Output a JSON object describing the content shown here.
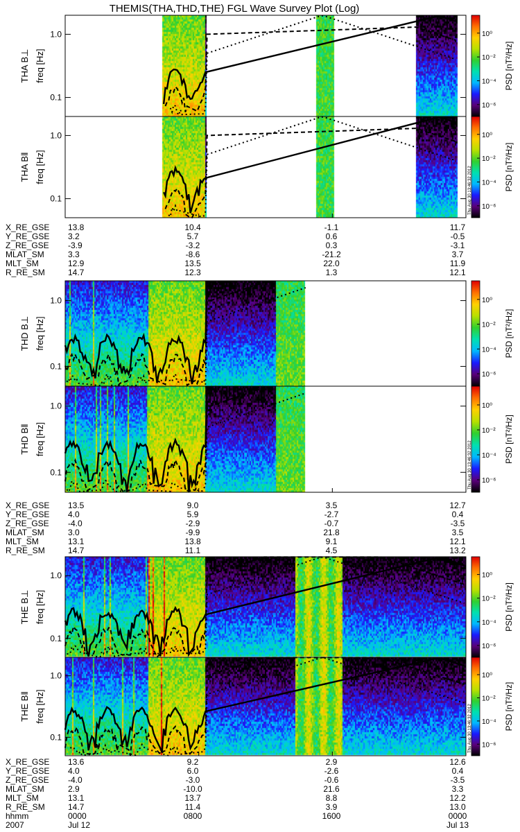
{
  "chart_data": {
    "type": "heatmap",
    "title": "THEMIS(THA,THD,THE) FGL Wave Survey Plot (Log)",
    "stamp": "Thu Aug 30 13:46:32 2012",
    "y_ticks": [
      "0.1",
      "1.0"
    ],
    "ylim_hz": [
      0.05,
      2.0
    ],
    "yscale": "log",
    "colorbar": {
      "label": "PSD [nT²/Hz]",
      "ticks": [
        "10⁰",
        "10⁻²",
        "10⁻⁴",
        "10⁻⁶"
      ],
      "range_log10": [
        -7,
        1.5
      ],
      "colormap": [
        "#000000",
        "#5a007a",
        "#1a1aff",
        "#00b8ff",
        "#00e0b0",
        "#30d030",
        "#b8e000",
        "#ffd000",
        "#ff7000",
        "#e00000"
      ]
    },
    "time": {
      "range_hours": [
        0,
        24
      ],
      "labels": [
        "0000",
        "0800",
        "1600",
        "0000"
      ],
      "label_hours": [
        0,
        8,
        16,
        24
      ],
      "date_labels": [
        "Jul 12",
        "",
        "",
        "Jul 13"
      ],
      "hhmm_row": "hhmm",
      "year": "2007"
    },
    "probes": [
      {
        "name": "THA",
        "panels": [
          {
            "ylabel": "THA B⊥",
            "sublabel": "freq [Hz]"
          },
          {
            "ylabel": "THA B‖",
            "sublabel": "freq [Hz]"
          }
        ],
        "data_intervals": [
          [
            5.8,
            8.5
          ],
          [
            15.0,
            16.1
          ],
          [
            21.0,
            23.5
          ]
        ],
        "ephemeris": [
          {
            "label": "X_RE_GSE",
            "values": [
              "13.8",
              "10.4",
              "-1.1",
              "11.7"
            ]
          },
          {
            "label": "Y_RE_GSE",
            "values": [
              "3.2",
              "5.7",
              "0.6",
              "-0.5"
            ]
          },
          {
            "label": "Z_RE_GSE",
            "values": [
              "-3.9",
              "-3.2",
              "0.3",
              "-3.1"
            ]
          },
          {
            "label": "MLAT_SM",
            "values": [
              "3.3",
              "-8.6",
              "-21.2",
              "3.7"
            ]
          },
          {
            "label": "MLT_SM",
            "values": [
              "12.9",
              "13.5",
              "22.0",
              "11.9"
            ]
          },
          {
            "label": "R_RE_SM",
            "values": [
              "14.7",
              "12.3",
              "1.3",
              "12.1"
            ]
          }
        ]
      },
      {
        "name": "THD",
        "panels": [
          {
            "ylabel": "THD B⊥",
            "sublabel": "freq [Hz]"
          },
          {
            "ylabel": "THD B‖",
            "sublabel": "freq [Hz]"
          }
        ],
        "data_intervals": [
          [
            0.0,
            14.4
          ]
        ],
        "ephemeris": [
          {
            "label": "X_RE_GSE",
            "values": [
              "13.5",
              "9.0",
              "3.5",
              "12.7"
            ]
          },
          {
            "label": "Y_RE_GSE",
            "values": [
              "4.0",
              "5.9",
              "-2.7",
              "0.4"
            ]
          },
          {
            "label": "Z_RE_GSE",
            "values": [
              "-4.0",
              "-2.9",
              "-0.7",
              "-3.5"
            ]
          },
          {
            "label": "MLAT_SM",
            "values": [
              "3.0",
              "-9.9",
              "21.8",
              "3.5"
            ]
          },
          {
            "label": "MLT_SM",
            "values": [
              "13.1",
              "13.8",
              "9.1",
              "12.1"
            ]
          },
          {
            "label": "R_RE_SM",
            "values": [
              "14.7",
              "11.1",
              "4.5",
              "13.2"
            ]
          }
        ]
      },
      {
        "name": "THE",
        "panels": [
          {
            "ylabel": "THE B⊥",
            "sublabel": "freq [Hz]"
          },
          {
            "ylabel": "THE B‖",
            "sublabel": "freq [Hz]"
          }
        ],
        "data_intervals": [
          [
            0.0,
            24.0
          ]
        ],
        "ephemeris": [
          {
            "label": "X_RE_GSE",
            "values": [
              "13.6",
              "9.2",
              "2.9",
              "12.6"
            ]
          },
          {
            "label": "Y_RE_GSE",
            "values": [
              "4.0",
              "6.0",
              "-2.6",
              "0.4"
            ]
          },
          {
            "label": "Z_RE_GSE",
            "values": [
              "-4.0",
              "-3.0",
              "-0.6",
              "-3.5"
            ]
          },
          {
            "label": "MLAT_SM",
            "values": [
              "2.9",
              "-10.0",
              "21.6",
              "3.3"
            ]
          },
          {
            "label": "MLT_SM",
            "values": [
              "13.1",
              "13.7",
              "8.8",
              "12.2"
            ]
          },
          {
            "label": "R_RE_SM",
            "values": [
              "14.7",
              "11.4",
              "3.9",
              "13.0"
            ]
          }
        ]
      }
    ]
  }
}
